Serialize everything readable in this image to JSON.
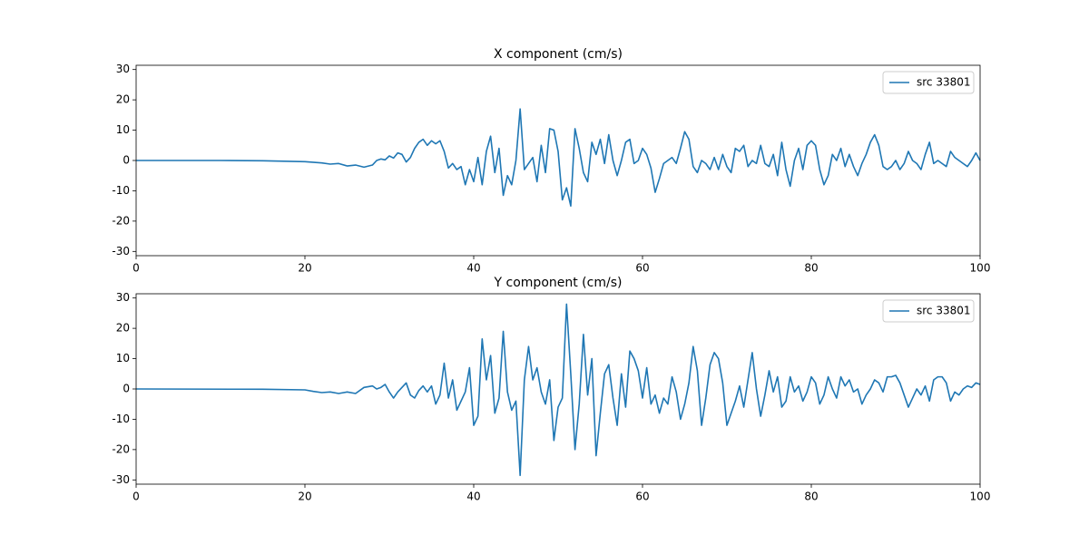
{
  "chart_data": [
    {
      "type": "line",
      "title": "X component (cm/s)",
      "x": [
        0,
        10,
        15,
        20,
        22,
        23,
        24,
        25,
        26,
        27,
        28,
        28.5,
        29,
        29.5,
        30,
        30.5,
        31,
        31.5,
        32,
        32.5,
        33,
        33.5,
        34,
        34.5,
        35,
        35.5,
        36,
        36.5,
        37,
        37.5,
        38,
        38.5,
        39,
        39.5,
        40,
        40.5,
        41,
        41.5,
        42,
        42.5,
        43,
        43.5,
        44,
        44.5,
        45,
        45.5,
        46,
        46.5,
        47,
        47.5,
        48,
        48.5,
        49,
        49.5,
        50,
        50.5,
        51,
        51.5,
        52,
        52.5,
        53,
        53.5,
        54,
        54.5,
        55,
        55.5,
        56,
        56.5,
        57,
        57.5,
        58,
        58.5,
        59,
        59.5,
        60,
        60.5,
        61,
        61.5,
        62,
        62.5,
        63,
        63.5,
        64,
        64.5,
        65,
        65.5,
        66,
        66.5,
        67,
        67.5,
        68,
        68.5,
        69,
        69.5,
        70,
        70.5,
        71,
        71.5,
        72,
        72.5,
        73,
        73.5,
        74,
        74.5,
        75,
        75.5,
        76,
        76.5,
        77,
        77.5,
        78,
        78.5,
        79,
        79.5,
        80,
        80.5,
        81,
        81.5,
        82,
        82.5,
        83,
        83.5,
        84,
        84.5,
        85,
        85.5,
        86,
        86.5,
        87,
        87.5,
        88,
        88.5,
        89,
        89.5,
        90,
        90.5,
        91,
        91.5,
        92,
        92.5,
        93,
        93.5,
        94,
        94.5,
        95,
        95.5,
        96,
        96.5,
        97,
        97.5,
        98,
        98.5,
        99,
        99.5,
        100
      ],
      "series": [
        {
          "name": "src 33801",
          "color": "#1f77b4",
          "values": [
            0,
            0,
            -0.1,
            -0.4,
            -0.8,
            -1.2,
            -1,
            -1.8,
            -1.5,
            -2.2,
            -1.5,
            0,
            0.5,
            0.2,
            1.5,
            0.8,
            2.5,
            2,
            -0.5,
            1,
            4,
            6,
            7,
            5,
            6.5,
            5.5,
            6.5,
            3,
            -2.5,
            -1,
            -3,
            -2,
            -8,
            -3,
            -7,
            1,
            -8,
            3,
            8,
            -4,
            4,
            -11.5,
            -5,
            -8,
            0,
            17,
            -3,
            -1,
            1,
            -7,
            5,
            -4,
            10.5,
            10,
            3,
            -13,
            -9,
            -15,
            10.5,
            4,
            -4,
            -7,
            6,
            2,
            7,
            -1,
            8.5,
            0,
            -5,
            0,
            6,
            7,
            -1,
            0,
            4,
            2,
            -2.5,
            -10.5,
            -6,
            -1,
            0,
            1,
            -1,
            4,
            9.5,
            7,
            -2,
            -4,
            0,
            -1,
            -3,
            1,
            -3,
            2,
            -2,
            -4,
            4,
            3,
            5,
            -2,
            0,
            -1,
            5,
            -1,
            -2,
            2,
            -5,
            6,
            -3,
            -8.5,
            0,
            4,
            -3,
            5,
            6.5,
            5,
            -3,
            -8,
            -5,
            2,
            0,
            4,
            -2,
            2,
            -2,
            -5,
            -1,
            2,
            6,
            8.5,
            5,
            -2,
            -3,
            -2,
            0,
            -3,
            -1,
            3,
            0,
            -1,
            -3,
            2,
            6,
            -1,
            0,
            -1,
            -2,
            3,
            1,
            0,
            -1,
            -2,
            0,
            2.5,
            0
          ]
        }
      ],
      "xlim": [
        0,
        100
      ],
      "ylim": [
        -31.4,
        31.4
      ],
      "xticks": [
        0,
        20,
        40,
        60,
        80,
        100
      ],
      "yticks": [
        -30,
        -20,
        -10,
        0,
        10,
        20,
        30
      ],
      "legend": "upper right"
    },
    {
      "type": "line",
      "title": "Y component (cm/s)",
      "x": [
        0,
        15,
        20,
        21,
        22,
        23,
        24,
        25,
        26,
        27,
        28,
        28.5,
        29,
        29.5,
        30,
        30.5,
        31,
        31.5,
        32,
        32.5,
        33,
        33.5,
        34,
        34.5,
        35,
        35.5,
        36,
        36.5,
        37,
        37.5,
        38,
        38.5,
        39,
        39.5,
        40,
        40.5,
        41,
        41.5,
        42,
        42.5,
        43,
        43.5,
        44,
        44.5,
        45,
        45.5,
        46,
        46.5,
        47,
        47.5,
        48,
        48.5,
        49,
        49.5,
        50,
        50.5,
        51,
        51.5,
        52,
        52.5,
        53,
        53.5,
        54,
        54.5,
        55,
        55.5,
        56,
        56.5,
        57,
        57.5,
        58,
        58.5,
        59,
        59.5,
        60,
        60.5,
        61,
        61.5,
        62,
        62.5,
        63,
        63.5,
        64,
        64.5,
        65,
        65.5,
        66,
        66.5,
        67,
        67.5,
        68,
        68.5,
        69,
        69.5,
        70,
        70.5,
        71,
        71.5,
        72,
        72.5,
        73,
        73.5,
        74,
        74.5,
        75,
        75.5,
        76,
        76.5,
        77,
        77.5,
        78,
        78.5,
        79,
        79.5,
        80,
        80.5,
        81,
        81.5,
        82,
        82.5,
        83,
        83.5,
        84,
        84.5,
        85,
        85.5,
        86,
        86.5,
        87,
        87.5,
        88,
        88.5,
        89,
        89.5,
        90,
        90.5,
        91,
        91.5,
        92,
        92.5,
        93,
        93.5,
        94,
        94.5,
        95,
        95.5,
        96,
        96.5,
        97,
        97.5,
        98,
        98.5,
        99,
        99.5,
        100
      ],
      "series": [
        {
          "name": "src 33801",
          "color": "#1f77b4",
          "values": [
            0,
            -0.1,
            -0.3,
            -0.8,
            -1.2,
            -1,
            -1.5,
            -1,
            -1.5,
            0.5,
            1,
            0,
            0.5,
            1.5,
            -1,
            -3,
            -1,
            0.5,
            2,
            -2,
            -3,
            -0.5,
            1,
            -1,
            1,
            -5,
            -2,
            8.5,
            -3,
            3,
            -7,
            -4,
            -1,
            7,
            -12,
            -9,
            16.5,
            3,
            11,
            -8,
            -3,
            19,
            -1,
            -7,
            -4,
            -28.5,
            3,
            14,
            3,
            7,
            -1,
            -5,
            3,
            -17,
            -6,
            -3,
            28,
            5,
            -20,
            -5,
            18,
            -2,
            10,
            -22,
            -8,
            5,
            8,
            -3,
            -12,
            5,
            -6,
            12.5,
            10,
            6,
            -3,
            7,
            -5,
            -2,
            -8,
            -3,
            -5,
            4,
            -1,
            -10,
            -5,
            2,
            14,
            6,
            -12,
            -3,
            8,
            12,
            10,
            2,
            -12,
            -8,
            -4,
            1,
            -6,
            3,
            12,
            0,
            -9,
            -2,
            6,
            -1,
            4,
            -6,
            -4,
            4,
            -1,
            1,
            -4,
            -1,
            4,
            2,
            -5,
            -2,
            4,
            0,
            -3,
            4,
            1,
            3,
            -1,
            0,
            -5,
            -2,
            0,
            3,
            2,
            -1,
            4,
            4,
            4.5,
            2,
            -2,
            -6,
            -3,
            0,
            -2,
            1,
            -4,
            3,
            4,
            4,
            2,
            -4,
            -1,
            -2,
            0,
            1,
            0.5,
            2,
            1.5
          ]
        }
      ],
      "xlim": [
        0,
        100
      ],
      "ylim": [
        -31.4,
        31.4
      ],
      "xticks": [
        0,
        20,
        40,
        60,
        80,
        100
      ],
      "yticks": [
        -30,
        -20,
        -10,
        0,
        10,
        20,
        30
      ],
      "legend": "upper right"
    }
  ]
}
